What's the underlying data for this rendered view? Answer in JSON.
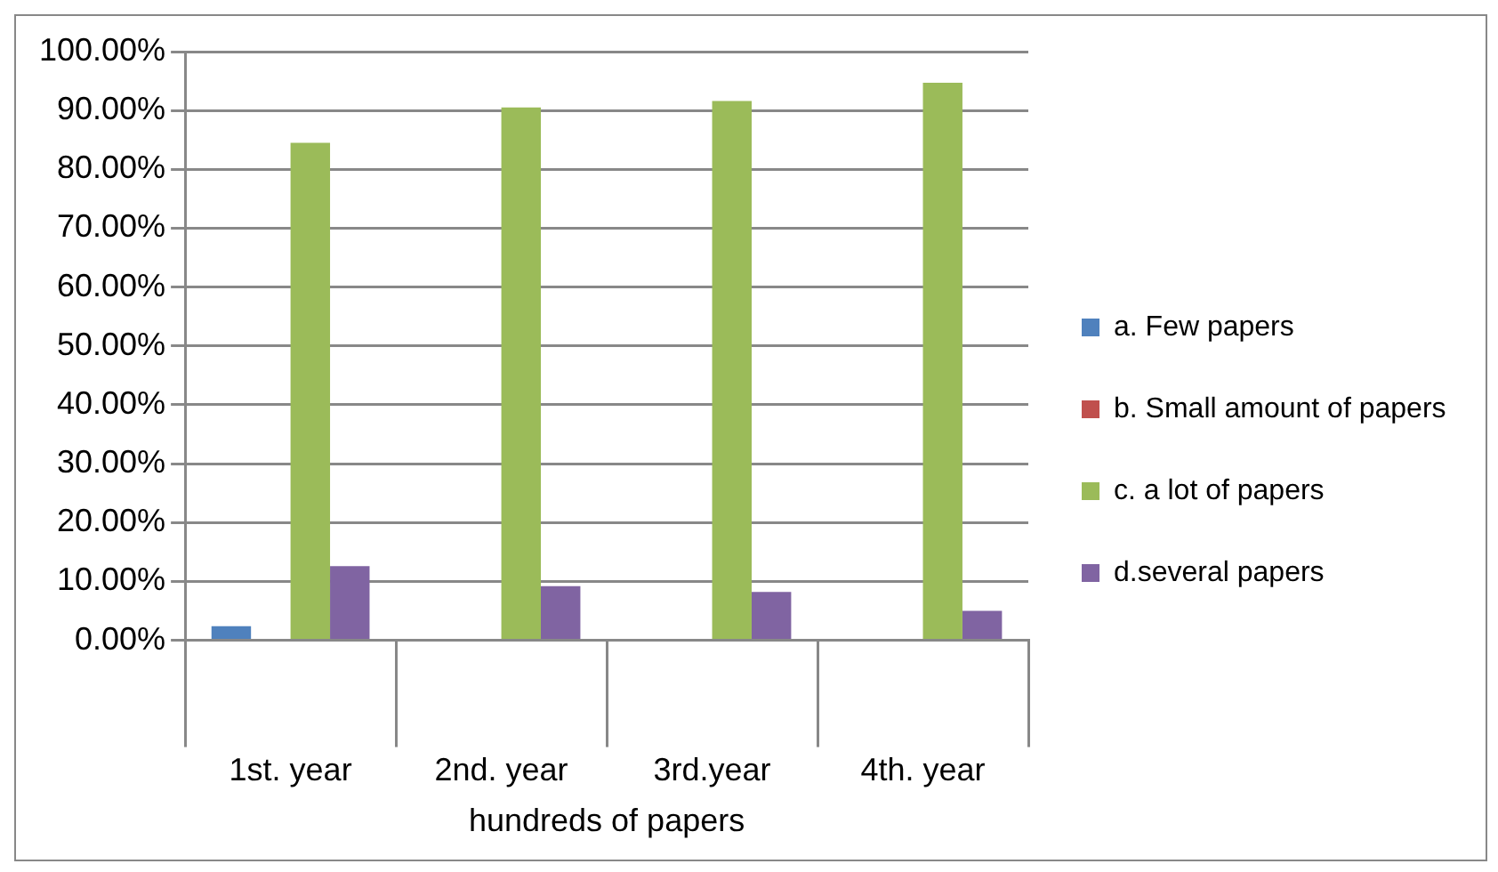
{
  "chart_data": {
    "type": "bar",
    "xlabel": "hundreds of papers",
    "categories": [
      "1st. year",
      "2nd. year",
      "3rd.year",
      "4th. year"
    ],
    "series": [
      {
        "name": "a. Few papers",
        "color": "#4f81bd",
        "values": [
          2.4,
          0,
          0,
          0
        ]
      },
      {
        "name": "b. Small amount of papers",
        "color": "#c0504d",
        "values": [
          0,
          0,
          0,
          0
        ]
      },
      {
        "name": "c. a lot of papers",
        "color": "#9bbb59",
        "values": [
          84.5,
          90.5,
          91.6,
          94.7
        ]
      },
      {
        "name": "d.several papers",
        "color": "#8064a2",
        "values": [
          12.6,
          9.2,
          8.2,
          5.0
        ]
      }
    ],
    "ylim": [
      0,
      100
    ],
    "yticks": [
      {
        "value": 0,
        "label": "0.00%"
      },
      {
        "value": 10,
        "label": "10.00%"
      },
      {
        "value": 20,
        "label": "20.00%"
      },
      {
        "value": 30,
        "label": "30.00%"
      },
      {
        "value": 40,
        "label": "40.00%"
      },
      {
        "value": 50,
        "label": "50.00%"
      },
      {
        "value": 60,
        "label": "60.00%"
      },
      {
        "value": 70,
        "label": "70.00%"
      },
      {
        "value": 80,
        "label": "80.00%"
      },
      {
        "value": 90,
        "label": "90.00%"
      },
      {
        "value": 100,
        "label": "100.00%"
      }
    ],
    "grid": "y",
    "legend": "right"
  }
}
